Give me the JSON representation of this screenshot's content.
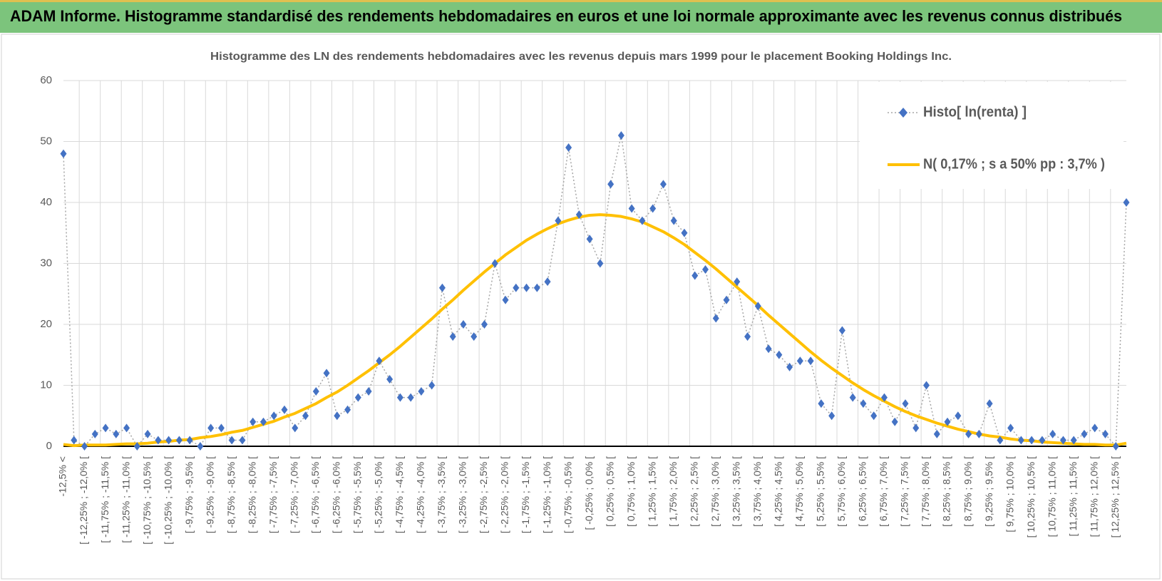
{
  "chart_data": {
    "type": "line",
    "title": "ADAM Informe. Histogramme standardisé des rendements hebdomadaires en euros et une loi normale approximante avec les revenus connus distribués",
    "subtitle": "Histogramme  des LN des rendements hebdomadaires avec les revenus depuis mars 1999 pour le placement Booking Holdings Inc.",
    "categories": [
      "-12,5% <",
      null,
      "[ -12,25% ; -12,0% [",
      null,
      "[ -11,75% ; -11,5% [",
      null,
      "[ -11,25% ; -11,0% [",
      null,
      "[ -10,75% ; -10,5% [",
      null,
      "[ -10,25% ; -10,0% [",
      null,
      "[ -9,75% ; -9,5% [",
      null,
      "[ -9,25% ; -9,0% [",
      null,
      "[ -8,75% ; -8,5% [",
      null,
      "[ -8,25% ; -8,0% [",
      null,
      "[ -7,75% ; -7,5% [",
      null,
      "[ -7,25% ; -7,0% [",
      null,
      "[ -6,75% ; -6,5% [",
      null,
      "[ -6,25% ; -6,0% [",
      null,
      "[ -5,75% ; -5,5% [",
      null,
      "[ -5,25% ; -5,0% [",
      null,
      "[ -4,75% ; -4,5% [",
      null,
      "[ -4,25% ; -4,0% [",
      null,
      "[ -3,75% ; -3,5% [",
      null,
      "[ -3,25% ; -3,0% [",
      null,
      "[ -2,75% ; -2,5% [",
      null,
      "[ -2,25% ; -2,0% [",
      null,
      "[ -1,75% ; -1,5% [",
      null,
      "[ -1,25% ; -1,0% [",
      null,
      "[ -0,75% ; -0,5% [",
      null,
      "[ -0,25% ; 0,0% [",
      null,
      "[ 0,25% ; 0,5% [",
      null,
      "[ 0,75% ; 1,0% [",
      null,
      "[ 1,25% ; 1,5% [",
      null,
      "[ 1,75% ; 2,0% [",
      null,
      "[ 2,25% ; 2,5% [",
      null,
      "[ 2,75% ; 3,0% [",
      null,
      "[ 3,25% ; 3,5% [",
      null,
      "[ 3,75% ; 4,0% [",
      null,
      "[ 4,25% ; 4,5% [",
      null,
      "[ 4,75% ; 5,0% [",
      null,
      "[ 5,25% ; 5,5% [",
      null,
      "[ 5,75% ; 6,0% [",
      null,
      "[ 6,25% ; 6,5% [",
      null,
      "[ 6,75% ; 7,0% [",
      null,
      "[ 7,25% ; 7,5% [",
      null,
      "[ 7,75% ; 8,0% [",
      null,
      "[ 8,25% ; 8,5% [",
      null,
      "[ 8,75% ; 9,0% [",
      null,
      "[ 9,25% ; 9,5% [",
      null,
      "[ 9,75% ; 10,0% [",
      null,
      "[ 10,25% ; 10,5% [",
      null,
      "[ 10,75% ; 11,0% [",
      null,
      "[ 11,25% ; 11,5% [",
      null,
      "[ 11,75% ; 12,0% [",
      null,
      "[ 12,25% ; 12,5% [",
      null
    ],
    "series": [
      {
        "name": "Histo[ ln(renta) ]",
        "color": "#4472c4",
        "line_color": "#a6a6a6",
        "marker": "diamond",
        "line_style": "dotted",
        "values": [
          48,
          1,
          0,
          2,
          3,
          2,
          3,
          0,
          2,
          1,
          1,
          1,
          1,
          0,
          3,
          3,
          1,
          1,
          4,
          4,
          5,
          6,
          3,
          5,
          9,
          12,
          5,
          6,
          8,
          9,
          14,
          11,
          8,
          8,
          9,
          10,
          26,
          18,
          20,
          18,
          20,
          30,
          24,
          26,
          26,
          26,
          27,
          37,
          49,
          38,
          34,
          30,
          43,
          51,
          39,
          37,
          39,
          43,
          37,
          35,
          28,
          29,
          21,
          24,
          27,
          18,
          23,
          16,
          15,
          13,
          14,
          14,
          7,
          5,
          19,
          8,
          7,
          5,
          8,
          4,
          7,
          3,
          10,
          2,
          4,
          5,
          2,
          2,
          7,
          1,
          3,
          1,
          1,
          1,
          2,
          1,
          1,
          2,
          3,
          2,
          0,
          40
        ]
      },
      {
        "name": "N( 0,17% ; s a 50% pp : 3,7% )",
        "color": "#ffc000",
        "marker": "none",
        "line_style": "solid",
        "values": [
          0.3,
          0.1,
          0.2,
          0.2,
          0.2,
          0.3,
          0.4,
          0.4,
          0.5,
          0.7,
          0.8,
          1.0,
          1.1,
          1.4,
          1.6,
          1.9,
          2.3,
          2.6,
          3.1,
          3.6,
          4.1,
          4.8,
          5.4,
          6.2,
          7.0,
          8.0,
          8.9,
          10.0,
          11.2,
          12.4,
          13.7,
          15.0,
          16.4,
          17.9,
          19.4,
          20.9,
          22.5,
          24.0,
          25.6,
          27.1,
          28.6,
          30.0,
          31.4,
          32.6,
          33.8,
          34.8,
          35.7,
          36.5,
          37.1,
          37.6,
          37.9,
          38.0,
          37.9,
          37.7,
          37.3,
          36.8,
          36.0,
          35.2,
          34.2,
          33.1,
          31.8,
          30.5,
          29.1,
          27.6,
          26.1,
          24.6,
          23.1,
          21.5,
          20.0,
          18.5,
          17.0,
          15.5,
          14.1,
          12.8,
          11.6,
          10.4,
          9.3,
          8.3,
          7.4,
          6.5,
          5.7,
          5.0,
          4.4,
          3.8,
          3.3,
          2.8,
          2.4,
          2.0,
          1.7,
          1.5,
          1.2,
          1.0,
          0.9,
          0.7,
          0.6,
          0.5,
          0.4,
          0.3,
          0.3,
          0.2,
          0.2,
          0.5
        ]
      }
    ],
    "ylim": [
      0,
      60
    ],
    "yticks": [
      0,
      10,
      20,
      30,
      40,
      50,
      60
    ],
    "grid": true,
    "legend": "top-right"
  }
}
